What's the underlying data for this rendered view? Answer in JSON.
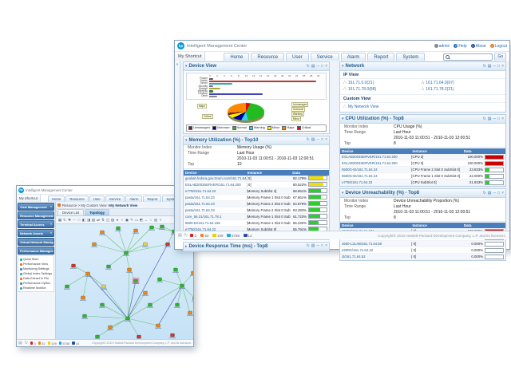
{
  "app": {
    "title": "Intelligent Management Center",
    "shortcut": "My Shortcut",
    "menu": [
      "Home",
      "Resource",
      "User",
      "Service",
      "Alarm",
      "Report",
      "System"
    ],
    "user": "admin",
    "links": {
      "help": "Help",
      "about": "About",
      "logout": "Logout"
    },
    "search_go": "Go",
    "copyright": "Copyright© 2010 Hewlett-Packard Development Company, L.P. and its licensors.",
    "alarm_counts": [
      {
        "level": "critical",
        "color": "#d42020",
        "count": "3"
      },
      {
        "level": "major",
        "color": "#f08418",
        "count": "52"
      },
      {
        "level": "minor",
        "color": "#f2d000",
        "count": "109"
      },
      {
        "level": "warning",
        "color": "#28a8d8",
        "count": "5758"
      },
      {
        "level": "info",
        "color": "#2a4da0",
        "count": "14"
      }
    ]
  },
  "chart_data": [
    {
      "type": "bar",
      "title": "Device View",
      "orientation": "horizontal",
      "categories": [
        "Router",
        "Switch",
        "Server",
        "Security",
        "Storage",
        "Wireless",
        "Desktop",
        "Other"
      ],
      "values": [
        1,
        28,
        6,
        1,
        3,
        1,
        14,
        2
      ],
      "colors": [
        "#555555",
        "#b03a3a",
        "#2fa8a8",
        "#8a5fb0",
        "#a8a832",
        "#3a7a3a",
        "#4444bb",
        "#888888"
      ],
      "xlabel": "",
      "ylabel": "",
      "xlim": [
        0,
        30
      ],
      "xtick_step": 2,
      "grid": true
    },
    {
      "type": "pie",
      "title": "Device status distribution",
      "labels": [
        "Unmanaged",
        "Unknown",
        "Normal",
        "Warning",
        "Minor",
        "Major",
        "Critical"
      ],
      "values": [
        2,
        10,
        38,
        12,
        4,
        26,
        8
      ],
      "colors": [
        "#7a1f1f",
        "#000099",
        "#22bb22",
        "#33ccff",
        "#ffee00",
        "#ff8800",
        "#ee0000"
      ],
      "legend_position": "bottom",
      "callouts_left": [
        "Major",
        "Critical"
      ],
      "callouts_right": [
        "Unmanaged",
        "Unknown",
        "Warning",
        "Minor"
      ]
    }
  ],
  "front": {
    "panels": {
      "device_view": {
        "title": "Device View"
      },
      "network": {
        "title": "Network",
        "ip_view_label": "IP View",
        "links": [
          {
            "label": "161.71.0.0(21)",
            "color": "#2f9e2f"
          },
          {
            "label": "161.71.64.0(67)",
            "color": "#cc2222"
          },
          {
            "label": "161.71.78.0(88)",
            "color": "#2f9e2f"
          },
          {
            "label": "161.71.78.2(21)",
            "color": "#2f9e2f"
          }
        ],
        "custom_view_label": "Custom View",
        "custom_link": {
          "label": "My Network View",
          "color": "#e07820"
        }
      },
      "cpu": {
        "title": "CPU Utilization (%) - Top8",
        "fields": [
          [
            "Monitor Index",
            "CPU Usage (%)"
          ],
          [
            "Time Range",
            "Last Hour"
          ],
          [
            "",
            "2010-11-03 11:00:51 - 2010-11-03 12:00:51"
          ],
          [
            "Top",
            "8"
          ]
        ],
        "headers": [
          "Device",
          "Instance",
          "Data"
        ],
        "rows": [
          {
            "device": "ESLAB2003SERVER/161.71.64.200",
            "instance": "[CPU 2]",
            "value": "100.000%",
            "pct": 100,
            "color": "#cc0000"
          },
          {
            "device": "ESLAB2003SERVER/161.71.64.200",
            "instance": "[CPU 3]",
            "value": "100.000%",
            "pct": 100,
            "color": "#cc0000"
          },
          {
            "device": "5500G-EI/161.71.64.24",
            "instance": "[CPU Frame 2 Slot 0 SubSlot 0]",
            "value": "23.833%",
            "pct": 24,
            "color": "#2fcc2f"
          },
          {
            "device": "5500G-EI/161.71.64.24",
            "instance": "[CPU Frame 1 Slot 0 SubSlot 0]",
            "value": "22.000%",
            "pct": 22,
            "color": "#2fcc2f"
          },
          {
            "device": "e7750/161.71.64.22",
            "instance": "[CPU SubSlot 0]",
            "value": "21.833%",
            "pct": 22,
            "color": "#2fcc2f"
          }
        ]
      },
      "memory": {
        "title": "Memory Utilization (%) - Top10",
        "fields": [
          [
            "Monitor Index",
            "Memory Usage (%)"
          ],
          [
            "Time Range",
            "Last Hour"
          ],
          [
            "",
            "2010-11-03 11:00:51 - 2010-11-03 12:00:51"
          ],
          [
            "Top",
            "10"
          ]
        ],
        "headers": [
          "Device",
          "Instance",
          "Data"
        ],
        "rows": [
          {
            "device": "gooliah.fedora.gov.3com.com/161.71.64.94",
            "instance": "[ 0]",
            "value": "82.179%",
            "pct": 82,
            "color": "#f0e000"
          },
          {
            "device": "ESLAB2003SERVER/161.71.64.200",
            "instance": "[ 0]",
            "value": "80.523%",
            "pct": 81,
            "color": "#f0e000"
          },
          {
            "device": "e7750/161.71.64.22",
            "instance": "[Memory SubSlot 4]",
            "value": "68.861%",
            "pct": 69,
            "color": "#2fcc2f"
          },
          {
            "device": "pasta/161.71.64.23",
            "instance": "[Memory Frame 1 Slot 0 SubSlot 0]",
            "value": "67.661%",
            "pct": 68,
            "color": "#2fcc2f"
          },
          {
            "device": "pasta/161.71.64.23",
            "instance": "[Memory Frame 2 Slot 0 SubSlot 0]",
            "value": "64.879%",
            "pct": 65,
            "color": "#2fcc2f"
          },
          {
            "device": "pasta/161.71.64.23",
            "instance": "[Memory Frame 2 Slot 0 SubSlot 0]",
            "value": "63.283%",
            "pct": 63,
            "color": "#2fcc2f"
          },
          {
            "device": "core_56.21/161.71.78.1",
            "instance": "[Memory Frame 1 Slot 0 SubSlot 0]",
            "value": "61.723%",
            "pct": 62,
            "color": "#2fcc2f"
          },
          {
            "device": "5500-EI/161.71.64.166",
            "instance": "[Memory Frame 1 Slot 0 SubSlot 0]",
            "value": "56.332%",
            "pct": 56,
            "color": "#2fcc2f"
          },
          {
            "device": "e7750/161.71.64.22",
            "instance": "[Memory SubSlot 0]",
            "value": "55.791%",
            "pct": 56,
            "color": "#2fcc2f"
          },
          {
            "device": "5500G-EI/161.71.64.24",
            "instance": "[Memory Frame 2 Slot 0 SubSlot 0]",
            "value": "51.207%",
            "pct": 51,
            "color": "#2fcc2f"
          }
        ]
      },
      "unreach": {
        "title": "Device Unreachability (%) - Top8",
        "fields": [
          [
            "Monitor Index",
            "Device Unreachability Proportion (%)"
          ],
          [
            "Time Range",
            "Last Hour"
          ],
          [
            "",
            "2010-11-03 11:00:51 - 2010-11-03 12:00:51"
          ],
          [
            "Top",
            "8"
          ]
        ],
        "headers": [
          "Device",
          "Instance",
          "Data"
        ],
        "rows": [
          {
            "device": "NMS2/161.71.64.181",
            "instance": "[ 0]",
            "value": "100.000%",
            "pct": 100,
            "color": "#cc0000"
          },
          {
            "device": "e7750/161.71.64.22",
            "instance": "[ 0]",
            "value": "0.000%",
            "pct": 0,
            "color": "#2fcc2f"
          },
          {
            "device": "4500-L2LAB/161.71.64.50",
            "instance": "[ 0]",
            "value": "0.000%",
            "pct": 0,
            "color": "#2fcc2f"
          },
          {
            "device": "4200G/161.71.64.42",
            "instance": "[ 0]",
            "value": "0.000%",
            "pct": 0,
            "color": "#2fcc2f"
          },
          {
            "device": "i3/161.71.64.52",
            "instance": "[ 0]",
            "value": "0.000%",
            "pct": 0,
            "color": "#2fcc2f"
          }
        ]
      },
      "response": {
        "title": "Device Response Time (ms) - Top8"
      }
    }
  },
  "back": {
    "breadcrumb_prefix": "Resource > My Custom View > ",
    "breadcrumb_current": "My Network View",
    "tabs": [
      "Device List",
      "Topology"
    ],
    "active_tab_index": 1,
    "sidebar": [
      "View Management",
      "Resource Management",
      "Terminal Access",
      "Network Assets",
      "Virtual Network Manager",
      "Performance Management"
    ],
    "tree": [
      "Quick Start",
      "Performance View",
      "Monitoring Settings",
      "Global Index Settings",
      "Data Extract to File",
      "Performance Option",
      "Realtime Monitor"
    ],
    "topology": {
      "node_colors": {
        "g": "#2fb62f",
        "o": "#f08418",
        "r": "#d83030",
        "y": "#e8d24a"
      },
      "nodes": [
        [
          88,
          36,
          "g"
        ],
        [
          58,
          10,
          "o"
        ],
        [
          78,
          5,
          "g"
        ],
        [
          100,
          8,
          "o"
        ],
        [
          120,
          4,
          "g"
        ],
        [
          48,
          25,
          "o"
        ],
        [
          112,
          25,
          "y"
        ],
        [
          92,
          57,
          "o"
        ],
        [
          66,
          53,
          "g"
        ],
        [
          148,
          9,
          "g"
        ],
        [
          133,
          3,
          "g"
        ],
        [
          166,
          6,
          "o"
        ],
        [
          170,
          21,
          "g"
        ],
        [
          140,
          25,
          "r"
        ],
        [
          22,
          52,
          "r"
        ],
        [
          40,
          62,
          "o"
        ],
        [
          14,
          78,
          "g"
        ],
        [
          34,
          92,
          "o"
        ],
        [
          60,
          78,
          "y"
        ],
        [
          100,
          71,
          "g"
        ],
        [
          112,
          86,
          "o"
        ],
        [
          90,
          118,
          "g"
        ],
        [
          58,
          101,
          "g"
        ],
        [
          68,
          129,
          "o"
        ],
        [
          52,
          141,
          "g"
        ],
        [
          118,
          101,
          "g"
        ],
        [
          128,
          127,
          "o"
        ],
        [
          146,
          139,
          "r"
        ],
        [
          36,
          115,
          "g"
        ],
        [
          158,
          77,
          "g"
        ],
        [
          150,
          57,
          "g"
        ],
        [
          172,
          61,
          "o"
        ],
        [
          174,
          93,
          "g"
        ],
        [
          152,
          101,
          "g"
        ],
        [
          168,
          111,
          "o"
        ],
        [
          104,
          141,
          "r"
        ],
        [
          130,
          69,
          "g"
        ]
      ],
      "selected_node": 19,
      "edges": [
        [
          0,
          1
        ],
        [
          0,
          2
        ],
        [
          0,
          3
        ],
        [
          0,
          4
        ],
        [
          0,
          5
        ],
        [
          0,
          6
        ],
        [
          0,
          7
        ],
        [
          0,
          8
        ],
        [
          0,
          13
        ],
        [
          9,
          10
        ],
        [
          9,
          11
        ],
        [
          9,
          12
        ],
        [
          9,
          13
        ],
        [
          9,
          4
        ],
        [
          21,
          22
        ],
        [
          21,
          23
        ],
        [
          21,
          24
        ],
        [
          21,
          25
        ],
        [
          21,
          26
        ],
        [
          21,
          28
        ],
        [
          21,
          35
        ],
        [
          21,
          7
        ],
        [
          21,
          19,
          1
        ],
        [
          21,
          15,
          1
        ],
        [
          21,
          13,
          1
        ],
        [
          26,
          29,
          1
        ],
        [
          29,
          30
        ],
        [
          29,
          31
        ],
        [
          29,
          32
        ],
        [
          29,
          33
        ],
        [
          29,
          34
        ],
        [
          29,
          25
        ],
        [
          29,
          36
        ],
        [
          15,
          14
        ],
        [
          15,
          16
        ],
        [
          15,
          17
        ],
        [
          15,
          18
        ],
        [
          18,
          21
        ],
        [
          20,
          21
        ],
        [
          19,
          7
        ]
      ]
    }
  }
}
